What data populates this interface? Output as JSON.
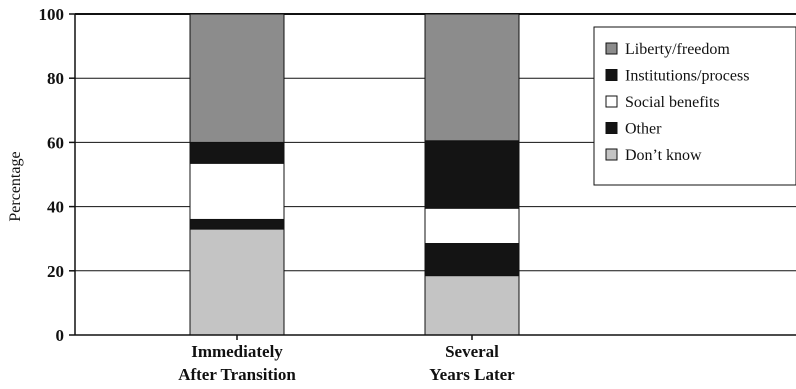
{
  "chart_data": {
    "type": "bar",
    "stacked": true,
    "orientation": "vertical",
    "categories": [
      [
        "Immediately",
        "After Transition"
      ],
      [
        "Several",
        "Years Later"
      ]
    ],
    "series": [
      {
        "name": "Don’t know",
        "values": [
          33,
          18.5
        ],
        "color": "#c4c4c4"
      },
      {
        "name": "Other",
        "values": [
          3,
          10
        ],
        "color": "#141414"
      },
      {
        "name": "Social benefits",
        "values": [
          17.5,
          11
        ],
        "color": "#ffffff"
      },
      {
        "name": "Institutions/process",
        "values": [
          6.5,
          21
        ],
        "color": "#141414"
      },
      {
        "name": "Liberty/freedom",
        "values": [
          40,
          39.5
        ],
        "color": "#8c8c8c"
      }
    ],
    "legend_order": [
      "Liberty/freedom",
      "Institutions/process",
      "Social benefits",
      "Other",
      "Don’t know"
    ],
    "title": "",
    "xlabel": "",
    "ylabel": "Percentage",
    "ylim": [
      0,
      100
    ],
    "yticks": [
      0,
      20,
      40,
      60,
      80,
      100
    ],
    "grid": "horizontal",
    "legend_position": "top-right"
  }
}
